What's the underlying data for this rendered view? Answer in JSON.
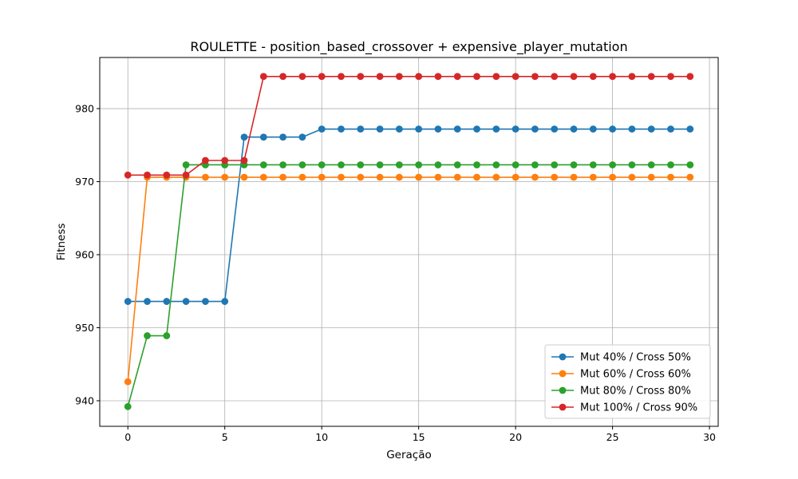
{
  "chart_data": {
    "type": "line",
    "title": "ROULETTE - position_based_crossover + expensive_player_mutation",
    "xlabel": "Geração",
    "ylabel": "Fitness",
    "xlim": [
      -1.45,
      30.45
    ],
    "ylim": [
      936.5,
      987.0
    ],
    "x_ticks": [
      0,
      5,
      10,
      15,
      20,
      25,
      30
    ],
    "y_ticks": [
      940,
      950,
      960,
      970,
      980
    ],
    "grid": true,
    "legend_position": "lower right",
    "x": [
      0,
      1,
      2,
      3,
      4,
      5,
      6,
      7,
      8,
      9,
      10,
      11,
      12,
      13,
      14,
      15,
      16,
      17,
      18,
      19,
      20,
      21,
      22,
      23,
      24,
      25,
      26,
      27,
      28,
      29
    ],
    "series": [
      {
        "name": "Mut 40% / Cross 50%",
        "color": "#1f77b4",
        "values": [
          953.6,
          953.6,
          953.6,
          953.6,
          953.6,
          953.6,
          976.1,
          976.1,
          976.1,
          976.1,
          977.2,
          977.2,
          977.2,
          977.2,
          977.2,
          977.2,
          977.2,
          977.2,
          977.2,
          977.2,
          977.2,
          977.2,
          977.2,
          977.2,
          977.2,
          977.2,
          977.2,
          977.2,
          977.2,
          977.2
        ]
      },
      {
        "name": "Mut 60% / Cross 60%",
        "color": "#ff7f0e",
        "values": [
          942.6,
          970.6,
          970.6,
          970.6,
          970.6,
          970.6,
          970.6,
          970.6,
          970.6,
          970.6,
          970.6,
          970.6,
          970.6,
          970.6,
          970.6,
          970.6,
          970.6,
          970.6,
          970.6,
          970.6,
          970.6,
          970.6,
          970.6,
          970.6,
          970.6,
          970.6,
          970.6,
          970.6,
          970.6,
          970.6
        ]
      },
      {
        "name": "Mut 80% / Cross 80%",
        "color": "#2ca02c",
        "values": [
          939.2,
          948.9,
          948.9,
          972.3,
          972.3,
          972.3,
          972.3,
          972.3,
          972.3,
          972.3,
          972.3,
          972.3,
          972.3,
          972.3,
          972.3,
          972.3,
          972.3,
          972.3,
          972.3,
          972.3,
          972.3,
          972.3,
          972.3,
          972.3,
          972.3,
          972.3,
          972.3,
          972.3,
          972.3,
          972.3
        ]
      },
      {
        "name": "Mut 100% / Cross 90%",
        "color": "#d62728",
        "values": [
          970.9,
          970.9,
          970.9,
          970.9,
          972.9,
          972.9,
          972.9,
          984.4,
          984.4,
          984.4,
          984.4,
          984.4,
          984.4,
          984.4,
          984.4,
          984.4,
          984.4,
          984.4,
          984.4,
          984.4,
          984.4,
          984.4,
          984.4,
          984.4,
          984.4,
          984.4,
          984.4,
          984.4,
          984.4,
          984.4
        ]
      }
    ]
  }
}
